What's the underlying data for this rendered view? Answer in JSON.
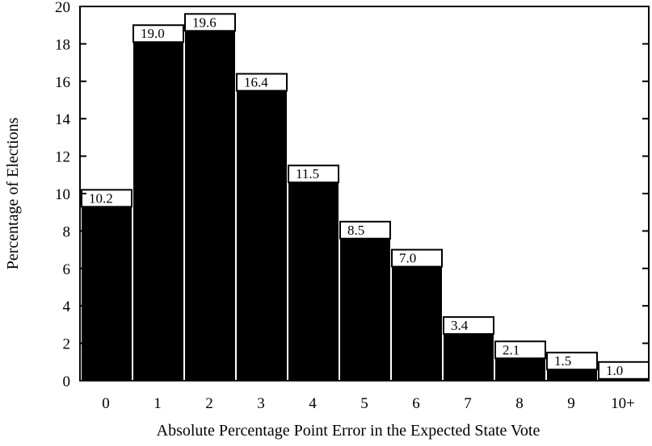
{
  "chart_data": {
    "type": "bar",
    "categories": [
      "0",
      "1",
      "2",
      "3",
      "4",
      "5",
      "6",
      "7",
      "8",
      "9",
      "10+"
    ],
    "values": [
      10.2,
      19.0,
      19.6,
      16.4,
      11.5,
      8.5,
      7.0,
      3.4,
      2.1,
      1.5,
      1.0
    ],
    "data_labels": [
      "10.2",
      "19.0",
      "19.6",
      "16.4",
      "11.5",
      "8.5",
      "7.0",
      "3.4",
      "2.1",
      "1.5",
      "1.0"
    ],
    "y_ticks": [
      "0",
      "2",
      "4",
      "6",
      "8",
      "10",
      "12",
      "14",
      "16",
      "18",
      "20"
    ],
    "xlabel": "Absolute Percentage Point Error in the Expected State Vote",
    "ylabel": "Percentage of Elections",
    "ylim": [
      0,
      20
    ],
    "grid": false,
    "legend": "none",
    "colors": {
      "bar_fill": "#000000",
      "label_box": "#ffffff",
      "axis": "#000000"
    }
  }
}
